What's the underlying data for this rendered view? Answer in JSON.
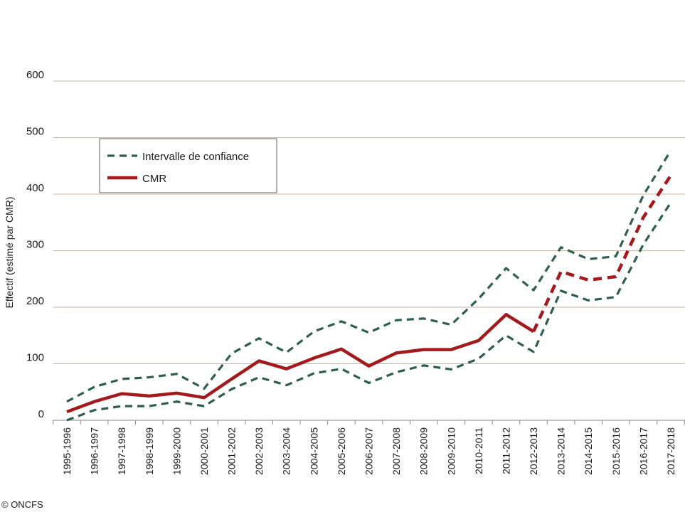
{
  "chart_data": {
    "type": "line",
    "ylabel": "Effectif (estimé par CMR)",
    "ylim": [
      0,
      600
    ],
    "yticks": [
      0,
      100,
      200,
      300,
      400,
      500,
      600
    ],
    "grid": true,
    "legend_placement": "upper-left",
    "categories": [
      "1995-1996",
      "1996-1997",
      "1997-1998",
      "1998-1999",
      "1999-2000",
      "2000-2001",
      "2001-2002",
      "2002-2003",
      "2003-2004",
      "2004-2005",
      "2005-2006",
      "2006-2007",
      "2007-2008",
      "2008-2009",
      "2009-2010",
      "2010-2011",
      "2011-2012",
      "2012-2013",
      "2013-2014",
      "2014-2015",
      "2015-2016",
      "2016-2017",
      "2017-2018"
    ],
    "series": [
      {
        "name": "Intervalle de confiance",
        "style": "dashed",
        "color": "#2e5e50",
        "upper": [
          33,
          59,
          73,
          76,
          82,
          56,
          118,
          145,
          120,
          157,
          175,
          155,
          177,
          180,
          169,
          215,
          269,
          230,
          306,
          285,
          290,
          398,
          477
        ],
        "lower": [
          0,
          18,
          25,
          25,
          33,
          25,
          55,
          76,
          62,
          83,
          91,
          66,
          85,
          97,
          90,
          109,
          150,
          121,
          229,
          212,
          218,
          311,
          385
        ]
      },
      {
        "name": "CMR",
        "style": "solid",
        "dashed_from_index": 17,
        "color": "#a3191c",
        "values": [
          15,
          33,
          47,
          43,
          48,
          40,
          73,
          105,
          91,
          110,
          126,
          96,
          119,
          125,
          125,
          141,
          187,
          157,
          263,
          248,
          254,
          359,
          433
        ]
      }
    ]
  },
  "credit": "© ONCFS",
  "colors": {
    "grid": "#c9b5a6",
    "axis": "#8a8a8a"
  }
}
